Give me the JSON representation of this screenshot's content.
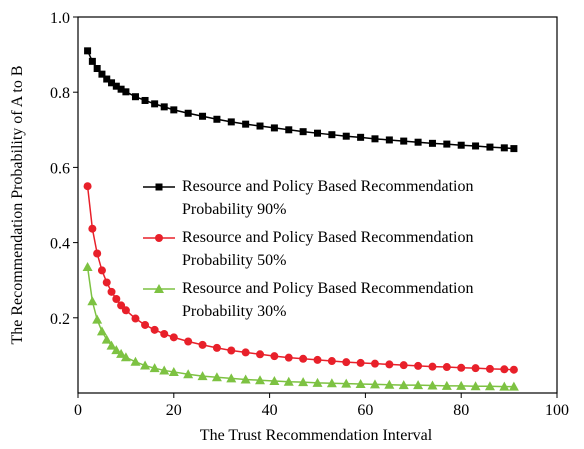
{
  "chart_data": {
    "type": "line",
    "x_label": "The Trust Recommendation Interval",
    "y_label": "The Recommendation Probability of A to B",
    "x": [
      2,
      3,
      4,
      5,
      6,
      7,
      8,
      9,
      10,
      12,
      14,
      16,
      18,
      20,
      23,
      26,
      29,
      32,
      35,
      38,
      41,
      44,
      47,
      50,
      53,
      56,
      59,
      62,
      65,
      68,
      71,
      74,
      77,
      80,
      83,
      86,
      89,
      91
    ],
    "series": [
      {
        "name": "Resource and Policy Based Recommendation Probability 90%",
        "color": "#000000",
        "marker": "square",
        "values": [
          0.91,
          0.882,
          0.863,
          0.848,
          0.835,
          0.825,
          0.816,
          0.808,
          0.801,
          0.788,
          0.778,
          0.769,
          0.761,
          0.753,
          0.744,
          0.736,
          0.728,
          0.721,
          0.715,
          0.71,
          0.705,
          0.7,
          0.695,
          0.691,
          0.687,
          0.683,
          0.68,
          0.676,
          0.673,
          0.67,
          0.667,
          0.664,
          0.662,
          0.659,
          0.657,
          0.654,
          0.652,
          0.65
        ]
      },
      {
        "name": "Resource and Policy Based Recommendation Probability 50%",
        "color": "#e8202a",
        "marker": "circle",
        "values": [
          0.55,
          0.437,
          0.371,
          0.326,
          0.294,
          0.269,
          0.25,
          0.233,
          0.22,
          0.198,
          0.181,
          0.168,
          0.157,
          0.148,
          0.137,
          0.128,
          0.12,
          0.113,
          0.108,
          0.103,
          0.098,
          0.094,
          0.091,
          0.088,
          0.085,
          0.082,
          0.08,
          0.078,
          0.076,
          0.074,
          0.072,
          0.07,
          0.069,
          0.067,
          0.066,
          0.064,
          0.063,
          0.062
        ]
      },
      {
        "name": "Resource and Policy Based Recommendation Probability 30%",
        "color": "#7dc242",
        "marker": "triangle",
        "values": [
          0.335,
          0.244,
          0.195,
          0.164,
          0.142,
          0.126,
          0.114,
          0.104,
          0.095,
          0.083,
          0.073,
          0.066,
          0.06,
          0.056,
          0.05,
          0.045,
          0.042,
          0.039,
          0.036,
          0.034,
          0.032,
          0.03,
          0.029,
          0.027,
          0.026,
          0.025,
          0.024,
          0.023,
          0.022,
          0.021,
          0.021,
          0.02,
          0.019,
          0.019,
          0.018,
          0.018,
          0.017,
          0.017
        ]
      }
    ],
    "xlim": [
      0,
      100
    ],
    "xticks": [
      0,
      20,
      40,
      60,
      80,
      100
    ],
    "ylim": [
      0,
      1
    ],
    "yticks": [
      0.2,
      0.4,
      0.6,
      0.8,
      {
        "value": 1,
        "label": "1.0"
      }
    ],
    "grid": false
  }
}
